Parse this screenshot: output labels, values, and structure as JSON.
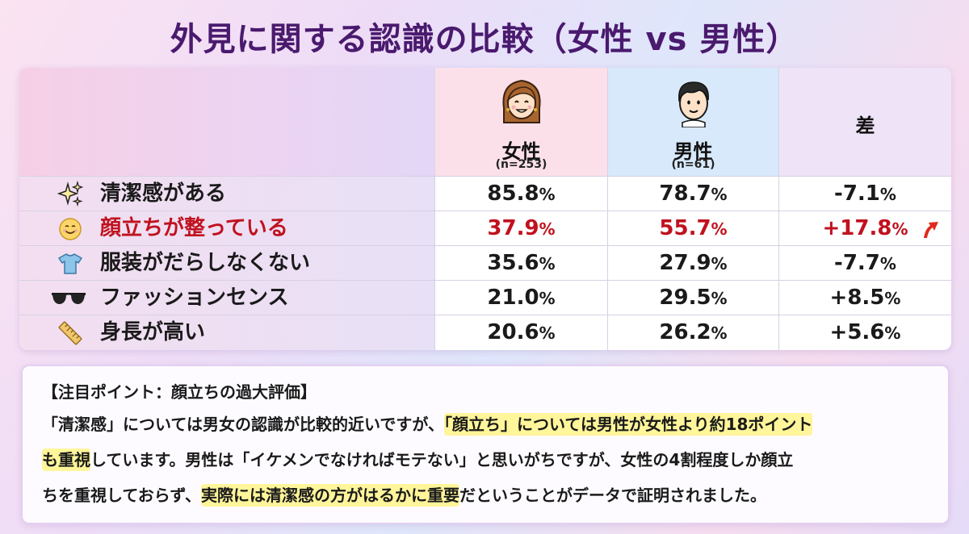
{
  "title": "外見に関する認識の比較（女性 vs 男性）",
  "columns": {
    "women": {
      "label": "女性",
      "n": "(n=253)"
    },
    "men": {
      "label": "男性",
      "n": "(n=61)"
    },
    "diff": {
      "label": "差"
    }
  },
  "chart_data": {
    "type": "table",
    "title": "外見に関する認識の比較（女性 vs 男性）",
    "columns": [
      "女性",
      "男性",
      "差"
    ],
    "unit": "%",
    "rows": [
      {
        "icon": "sparkles-icon",
        "label": "清潔感がある",
        "women": "85.8",
        "men": "78.7",
        "diff": "-7.1",
        "highlight": false
      },
      {
        "icon": "smiling-face-icon",
        "label": "顔立ちが整っている",
        "women": "37.9",
        "men": "55.7",
        "diff": "+17.8",
        "highlight": true
      },
      {
        "icon": "tshirt-icon",
        "label": "服装がだらしなくない",
        "women": "35.6",
        "men": "27.9",
        "diff": "-7.7",
        "highlight": false
      },
      {
        "icon": "sunglasses-icon",
        "label": "ファッションセンス",
        "women": "21.0",
        "men": "29.5",
        "diff": "+8.5",
        "highlight": false
      },
      {
        "icon": "ruler-icon",
        "label": "身長が高い",
        "women": "20.6",
        "men": "26.2",
        "diff": "+5.6",
        "highlight": false
      }
    ]
  },
  "colors": {
    "title": "#4a1a6e",
    "highlight_text": "#c0121e",
    "highlight_marker": "#fff59a"
  },
  "note": {
    "heading": "【注目ポイント：顔立ちの過大評価】",
    "line1_a": "「清潔感」については男女の認識が比較的近いですが、",
    "line1_hl": "「顔立ち」については男性が女性より約18ポイント",
    "line2_hl": "も重視",
    "line2_b": "しています。男性は「イケメンでなければモテない」と思いがちですが、女性の4割程度しか顔立",
    "line3_a": "ちを重視しておらず、",
    "line3_hl": "実際には清潔感の方がはるかに重要",
    "line3_b": "だということがデータで証明されました。"
  }
}
